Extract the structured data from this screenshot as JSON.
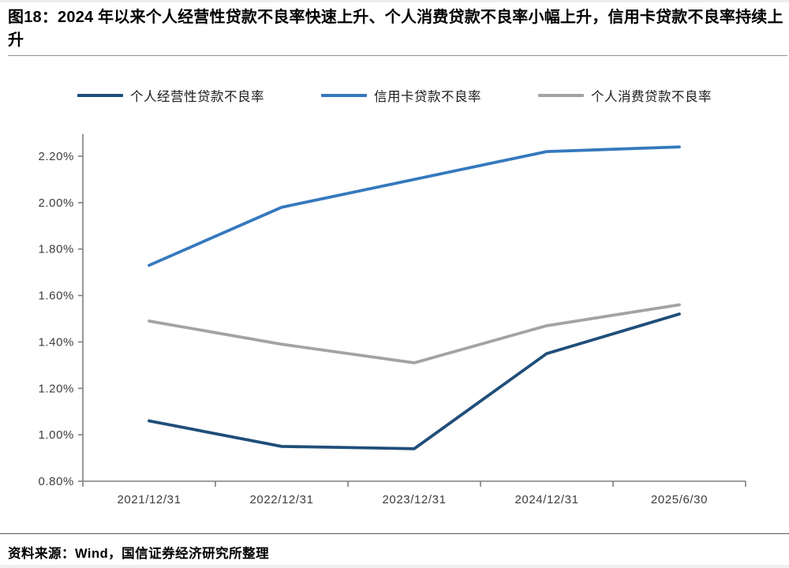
{
  "figure": {
    "title": "图18：2024 年以来个人经营性贷款不良率快速上升、个人消费贷款不良率小幅上升，信用卡贷款不良率持续上升"
  },
  "chart_data": {
    "type": "line",
    "categories": [
      "2021/12/31",
      "2022/12/31",
      "2023/12/31",
      "2024/12/31",
      "2025/6/30"
    ],
    "series": [
      {
        "name": "个人经营性贷款不良率",
        "color": "#1F4E79",
        "values": [
          1.06,
          0.95,
          0.94,
          1.35,
          1.52
        ]
      },
      {
        "name": "信用卡贷款不良率",
        "color": "#3579BE",
        "values": [
          1.73,
          1.98,
          2.1,
          2.22,
          2.24
        ]
      },
      {
        "name": "个人消费贷款不良率",
        "color": "#A3A3A3",
        "values": [
          1.49,
          1.39,
          1.31,
          1.47,
          1.56
        ]
      }
    ],
    "ylim": [
      0.8,
      2.2
    ],
    "ytick_step": 0.2,
    "ytick_labels": [
      "2.20%",
      "2.00%",
      "1.80%",
      "1.60%",
      "1.40%",
      "1.20%",
      "1.00%",
      "0.80%"
    ],
    "legend_position": "top",
    "grid": false,
    "axis_color": "#7f7f7f",
    "xlabel": "",
    "ylabel": ""
  },
  "source": {
    "text": "资料来源：Wind，国信证券经济研究所整理"
  }
}
